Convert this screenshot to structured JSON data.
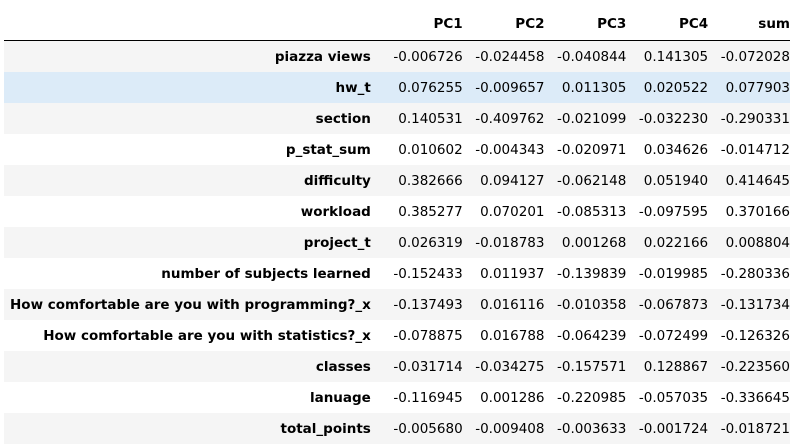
{
  "table": {
    "index_header": "",
    "columns": [
      "PC1",
      "PC2",
      "PC3",
      "PC4",
      "sum"
    ],
    "rows": [
      {
        "label": "piazza views",
        "values": [
          "-0.006726",
          "-0.024458",
          "-0.040844",
          "0.141305",
          "-0.072028"
        ]
      },
      {
        "label": "hw_t",
        "values": [
          "0.076255",
          "-0.009657",
          "0.011305",
          "0.020522",
          "0.077903"
        ]
      },
      {
        "label": "section",
        "values": [
          "0.140531",
          "-0.409762",
          "-0.021099",
          "-0.032230",
          "-0.290331"
        ]
      },
      {
        "label": "p_stat_sum",
        "values": [
          "0.010602",
          "-0.004343",
          "-0.020971",
          "0.034626",
          "-0.014712"
        ]
      },
      {
        "label": "difficulty",
        "values": [
          "0.382666",
          "0.094127",
          "-0.062148",
          "0.051940",
          "0.414645"
        ]
      },
      {
        "label": "workload",
        "values": [
          "0.385277",
          "0.070201",
          "-0.085313",
          "-0.097595",
          "0.370166"
        ]
      },
      {
        "label": "project_t",
        "values": [
          "0.026319",
          "-0.018783",
          "0.001268",
          "0.022166",
          "0.008804"
        ]
      },
      {
        "label": "number of subjects learned",
        "values": [
          "-0.152433",
          "0.011937",
          "-0.139839",
          "-0.019985",
          "-0.280336"
        ]
      },
      {
        "label": "How comfortable are you with programming?_x",
        "values": [
          "-0.137493",
          "0.016116",
          "-0.010358",
          "-0.067873",
          "-0.131734"
        ]
      },
      {
        "label": "How comfortable are you with statistics?_x",
        "values": [
          "-0.078875",
          "0.016788",
          "-0.064239",
          "-0.072499",
          "-0.126326"
        ]
      },
      {
        "label": "classes",
        "values": [
          "-0.031714",
          "-0.034275",
          "-0.157571",
          "0.128867",
          "-0.223560"
        ]
      },
      {
        "label": "lanuage",
        "values": [
          "-0.116945",
          "0.001286",
          "-0.220985",
          "-0.057035",
          "-0.336645"
        ]
      },
      {
        "label": "total_points",
        "values": [
          "-0.005680",
          "-0.009408",
          "-0.003633",
          "-0.001724",
          "-0.018721"
        ]
      }
    ],
    "hovered_row": "hw_t",
    "colors": {
      "stripe": "#f5f5f5",
      "hover": "#dcebf8",
      "header_rule": "#000000"
    }
  }
}
